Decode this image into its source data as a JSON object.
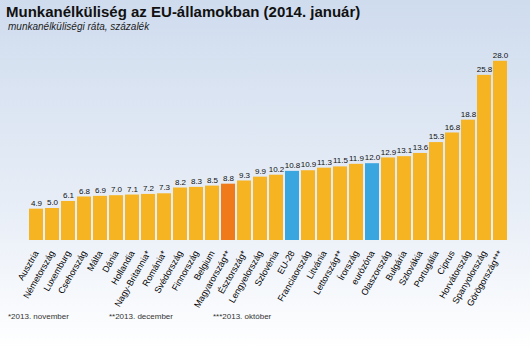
{
  "chart_data": {
    "type": "bar",
    "title": "Munkanélküliség az EU-államokban (2014. január)",
    "subtitle": "munkanélküliségi ráta, százalék",
    "categories": [
      "Ausztria",
      "Németország",
      "Luxemburg",
      "Csehország",
      "Málta",
      "Dánia",
      "Hollandia",
      "Nagy-Britannia*",
      "Románia*",
      "Svédország",
      "Finnország",
      "Belgium",
      "Magyarország**",
      "Észtország*",
      "Lengyelország",
      "Szlovénia",
      "EU-28",
      "Franciaország",
      "Litvánia",
      "Lettország**",
      "Írország",
      "eurózóna",
      "Olaszország",
      "Bulgária",
      "Szlovákia",
      "Portugália",
      "Ciprus",
      "Horvátország",
      "Spanyolország",
      "Görögország***"
    ],
    "values": [
      4.9,
      5.0,
      6.1,
      6.8,
      6.9,
      7.0,
      7.1,
      7.2,
      7.3,
      8.2,
      8.3,
      8.5,
      8.8,
      9.3,
      9.9,
      10.2,
      10.8,
      10.9,
      11.3,
      11.5,
      11.9,
      12.0,
      12.9,
      13.1,
      13.6,
      15.3,
      16.8,
      18.8,
      25.8,
      28.0
    ],
    "value_labels": [
      "4.9",
      "5.0",
      "6.1",
      "6.8",
      "6.9",
      "7.0",
      "7.1",
      "7.2",
      "7.3",
      "8.2",
      "8.3",
      "8.5",
      "8.8",
      "9.3",
      "9.9",
      "10.2",
      "10.8",
      "10.9",
      "11.3",
      "11.5",
      "11.9",
      "12.0",
      "12.9",
      "13.1",
      "13.6",
      "15.3",
      "16.8",
      "18.8",
      "25.8",
      "28.0"
    ],
    "colors": [
      "#f6b423",
      "#f6b423",
      "#f6b423",
      "#f6b423",
      "#f6b423",
      "#f6b423",
      "#f6b423",
      "#f6b423",
      "#f6b423",
      "#f6b423",
      "#f6b423",
      "#f6b423",
      "#f07a1a",
      "#f6b423",
      "#f6b423",
      "#f6b423",
      "#3aa6e0",
      "#f6b423",
      "#f6b423",
      "#f6b423",
      "#f6b423",
      "#3aa6e0",
      "#f6b423",
      "#f6b423",
      "#f6b423",
      "#f6b423",
      "#f6b423",
      "#f6b423",
      "#f6b423",
      "#f6b423"
    ],
    "ylim": [
      0,
      30
    ],
    "data_labels": true,
    "tick_labels": "x",
    "annotations": [
      "*2013. november",
      "**2013. december",
      "***2013. október"
    ]
  }
}
